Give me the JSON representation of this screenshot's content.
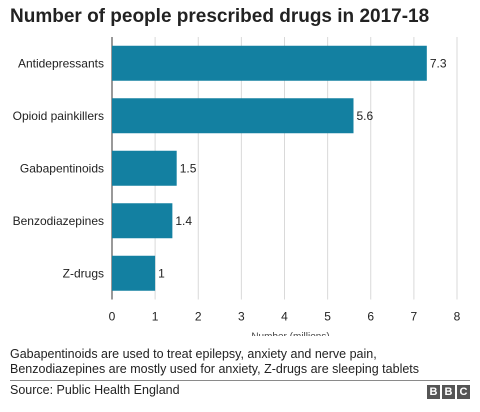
{
  "chart_data": {
    "type": "bar",
    "orientation": "horizontal",
    "title": "Number of people prescribed drugs in 2017-18",
    "categories": [
      "Antidepressants",
      "Opioid painkillers",
      "Gabapentinoids",
      "Benzodiazepines",
      "Z-drugs"
    ],
    "values": [
      7.3,
      5.6,
      1.5,
      1.4,
      1
    ],
    "value_labels": [
      "7.3",
      "5.6",
      "1.5",
      "1.4",
      "1"
    ],
    "xlabel": "Number (millions)",
    "xlim": [
      0,
      8
    ],
    "xticks": [
      0,
      1,
      2,
      3,
      4,
      5,
      6,
      7,
      8
    ],
    "grid": true,
    "bar_color": "#1380A1",
    "grid_color": "#d9d9d9"
  },
  "note": "Gabapentinoids are used to treat epilepsy, anxiety and nerve pain, Benzodiazepines are mostly used for anxiety, Z-drugs are sleeping tablets",
  "source": "Source: Public Health England",
  "logo": [
    "B",
    "B",
    "C"
  ]
}
